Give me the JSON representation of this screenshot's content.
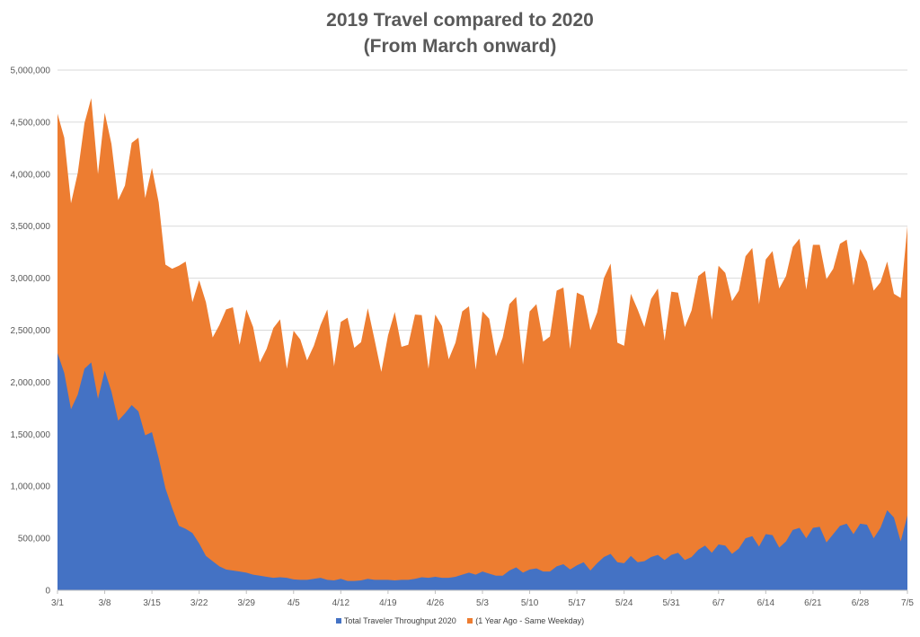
{
  "chart_data": {
    "type": "area",
    "stacked": true,
    "title": "2019 Travel compared to 2020",
    "subtitle": "(From March onward)",
    "xlabel": "",
    "ylabel": "",
    "ylim": [
      0,
      5000000
    ],
    "yticks": [
      "0",
      "500,000",
      "1,000,000",
      "1,500,000",
      "2,000,000",
      "2,500,000",
      "3,000,000",
      "3,500,000",
      "4,000,000",
      "4,500,000",
      "5,000,000"
    ],
    "xticks": [
      "3/1",
      "3/8",
      "3/15",
      "3/22",
      "3/29",
      "4/5",
      "4/12",
      "4/19",
      "4/26",
      "5/3",
      "5/10",
      "5/17",
      "5/24",
      "5/31",
      "6/7",
      "6/14",
      "6/21",
      "6/28",
      "7/5"
    ],
    "grid": "horizontal",
    "legend_position": "bottom",
    "x_start": "3/1",
    "x_end": "7/5",
    "series": [
      {
        "name": "Total Traveler Throughput 2020",
        "color": "#4472C4",
        "values": [
          2280000,
          2090000,
          1740000,
          1880000,
          2130000,
          2190000,
          1840000,
          2110000,
          1910000,
          1630000,
          1700000,
          1780000,
          1720000,
          1490000,
          1520000,
          1270000,
          980000,
          790000,
          620000,
          590000,
          550000,
          450000,
          330000,
          280000,
          230000,
          200000,
          190000,
          180000,
          170000,
          150000,
          140000,
          130000,
          120000,
          125000,
          120000,
          105000,
          100000,
          100000,
          110000,
          120000,
          100000,
          95000,
          110000,
          90000,
          90000,
          95000,
          110000,
          100000,
          100000,
          100000,
          95000,
          100000,
          100000,
          110000,
          125000,
          120000,
          130000,
          120000,
          120000,
          130000,
          150000,
          170000,
          150000,
          180000,
          160000,
          140000,
          140000,
          190000,
          220000,
          170000,
          200000,
          210000,
          180000,
          180000,
          230000,
          250000,
          200000,
          240000,
          270000,
          190000,
          260000,
          320000,
          350000,
          270000,
          260000,
          330000,
          270000,
          280000,
          320000,
          340000,
          290000,
          340000,
          360000,
          290000,
          320000,
          390000,
          430000,
          360000,
          440000,
          430000,
          350000,
          400000,
          500000,
          520000,
          420000,
          540000,
          530000,
          410000,
          470000,
          580000,
          600000,
          500000,
          600000,
          610000,
          460000,
          540000,
          620000,
          640000,
          540000,
          640000,
          630000,
          500000,
          600000,
          770000,
          700000,
          470000,
          720000
        ]
      },
      {
        "name": "(1 Year Ago - Same Weekday)",
        "color": "#ED7D31",
        "values": [
          2300000,
          2260000,
          1980000,
          2130000,
          2360000,
          2540000,
          2160000,
          2480000,
          2380000,
          2120000,
          2190000,
          2520000,
          2630000,
          2280000,
          2540000,
          2460000,
          2150000,
          2300000,
          2500000,
          2570000,
          2220000,
          2530000,
          2440000,
          2150000,
          2320000,
          2500000,
          2530000,
          2180000,
          2530000,
          2380000,
          2050000,
          2190000,
          2400000,
          2480000,
          2010000,
          2390000,
          2310000,
          2110000,
          2240000,
          2430000,
          2600000,
          2060000,
          2470000,
          2530000,
          2240000,
          2290000,
          2600000,
          2310000,
          2000000,
          2350000,
          2580000,
          2240000,
          2260000,
          2540000,
          2520000,
          2010000,
          2520000,
          2420000,
          2100000,
          2250000,
          2530000,
          2560000,
          1970000,
          2500000,
          2450000,
          2110000,
          2290000,
          2560000,
          2600000,
          2000000,
          2480000,
          2540000,
          2210000,
          2260000,
          2650000,
          2660000,
          2120000,
          2620000,
          2560000,
          2310000,
          2410000,
          2680000,
          2790000,
          2110000,
          2090000,
          2520000,
          2430000,
          2250000,
          2480000,
          2560000,
          2110000,
          2530000,
          2500000,
          2240000,
          2370000,
          2630000,
          2640000,
          2240000,
          2680000,
          2620000,
          2430000,
          2480000,
          2710000,
          2770000,
          2330000,
          2640000,
          2730000,
          2490000,
          2550000,
          2720000,
          2780000,
          2390000,
          2720000,
          2710000,
          2530000,
          2550000,
          2710000,
          2730000,
          2390000,
          2640000,
          2530000,
          2380000,
          2360000,
          2390000,
          2150000,
          2340000,
          2780000
        ]
      }
    ]
  }
}
